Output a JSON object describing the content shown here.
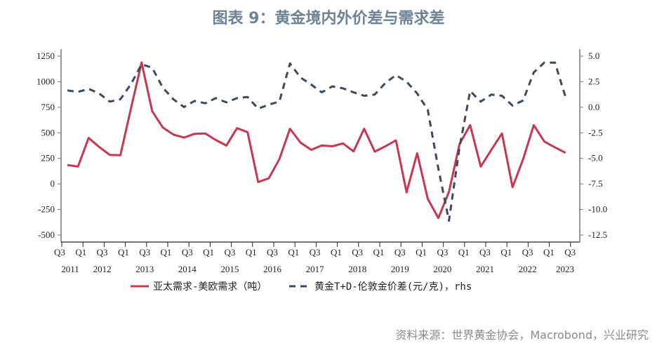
{
  "title": "图表 9：黄金境内外价差与需求差",
  "source": "资料来源：世界黄金协会，Macrobond，兴业研究",
  "chart_data": {
    "type": "line",
    "title": "图表 9：黄金境内外价差与需求差",
    "x_tick_labels": [
      "Q3",
      "Q1",
      "Q3",
      "Q1",
      "Q3",
      "Q1",
      "Q3",
      "Q1",
      "Q3",
      "Q1",
      "Q3",
      "Q1",
      "Q3",
      "Q1",
      "Q3",
      "Q1",
      "Q3",
      "Q1",
      "Q3",
      "Q1",
      "Q3",
      "Q1",
      "Q3",
      "Q1",
      "Q3"
    ],
    "year_labels": [
      "2011",
      "2012",
      "2013",
      "2014",
      "2015",
      "2016",
      "2017",
      "2018",
      "2019",
      "2020",
      "2021",
      "2022",
      "2023"
    ],
    "y_left": {
      "ticks": [
        "1250",
        "1000",
        "750",
        "500",
        "250",
        "0",
        "-250",
        "-500"
      ],
      "range": [
        -500,
        1250
      ]
    },
    "y_right": {
      "ticks": [
        "5.0",
        "2.5",
        "0.0",
        "-2.5",
        "-5.0",
        "-7.5",
        "-10.0",
        "-12.5"
      ],
      "range": [
        -12.5,
        5.0
      ],
      "label": "rhs"
    },
    "grid": false,
    "legend_placement": "bottom",
    "series": [
      {
        "name": "亚太需求-美欧需求（吨）",
        "axis": "left",
        "style": "solid",
        "color": "#c8374f",
        "values": [
          185,
          170,
          449,
          362,
          284,
          281,
          740,
          1188,
          712,
          552,
          483,
          453,
          490,
          494,
          430,
          375,
          545,
          506,
          18,
          55,
          243,
          540,
          403,
          334,
          376,
          368,
          396,
          318,
          540,
          316,
          368,
          426,
          -82,
          300,
          -146,
          -334,
          -78,
          391,
          575,
          170,
          334,
          494,
          -32,
          243,
          575,
          414,
          357,
          304
        ]
      },
      {
        "name": "黄金T+D-伦敦金价差(元/克)，rhs",
        "axis": "right",
        "style": "dashed",
        "color": "#3c4a60",
        "values": [
          1.65,
          1.5,
          1.8,
          1.35,
          0.55,
          0.78,
          2.27,
          4.2,
          3.87,
          1.92,
          0.78,
          0.02,
          0.62,
          0.39,
          0.89,
          0.48,
          0.89,
          1.0,
          -0.14,
          0.25,
          0.55,
          4.28,
          2.9,
          2.22,
          1.46,
          2.04,
          1.85,
          1.46,
          1.12,
          1.24,
          2.38,
          3.14,
          2.5,
          1.35,
          -0.25,
          -6.0,
          -11.1,
          -3.9,
          1.58,
          0.55,
          1.24,
          1.12,
          0.16,
          0.67,
          3.41,
          4.37,
          4.37,
          1.0
        ]
      }
    ],
    "legend": [
      "亚太需求-美欧需求（吨）",
      "黄金T+D-伦敦金价差(元/克)，rhs"
    ]
  }
}
